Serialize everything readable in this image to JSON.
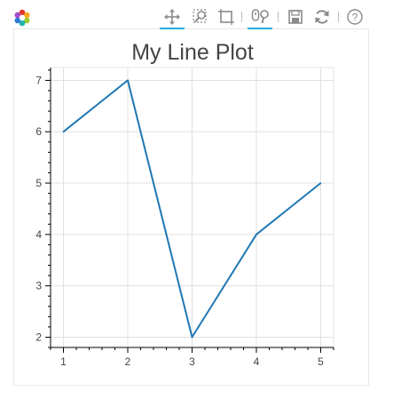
{
  "toolbar": {
    "tools": [
      {
        "name": "pan-tool",
        "icon": "move-arrows-icon",
        "active": true
      },
      {
        "name": "box-zoom-tool",
        "icon": "box-zoom-icon",
        "active": false
      },
      {
        "name": "zoom-rect-tool",
        "icon": "zoom-rect-icon",
        "active": false
      },
      {
        "name": "wheel-zoom-tool",
        "icon": "wheel-zoom-icon",
        "active": true
      },
      {
        "name": "save-tool",
        "icon": "save-icon",
        "active": false
      },
      {
        "name": "reset-tool",
        "icon": "reset-icon",
        "active": false
      },
      {
        "name": "help-tool",
        "icon": "help-icon",
        "active": false
      }
    ],
    "logo": "bokeh-logo-icon",
    "accent_color": "#26aae1"
  },
  "chart_data": {
    "type": "line",
    "title": "My Line Plot",
    "xlabel": "",
    "ylabel": "",
    "x": [
      1,
      2,
      3,
      4,
      5
    ],
    "series": [
      {
        "values": [
          6,
          7,
          2,
          4,
          5
        ],
        "color": "#1f77b4"
      }
    ],
    "xlim": [
      0.8,
      5.2
    ],
    "ylim": [
      1.8,
      7.25
    ],
    "xticks": [
      1,
      2,
      3,
      4,
      5
    ],
    "yticks": [
      2,
      3,
      4,
      5,
      6,
      7
    ],
    "grid": true,
    "legend": "none"
  }
}
